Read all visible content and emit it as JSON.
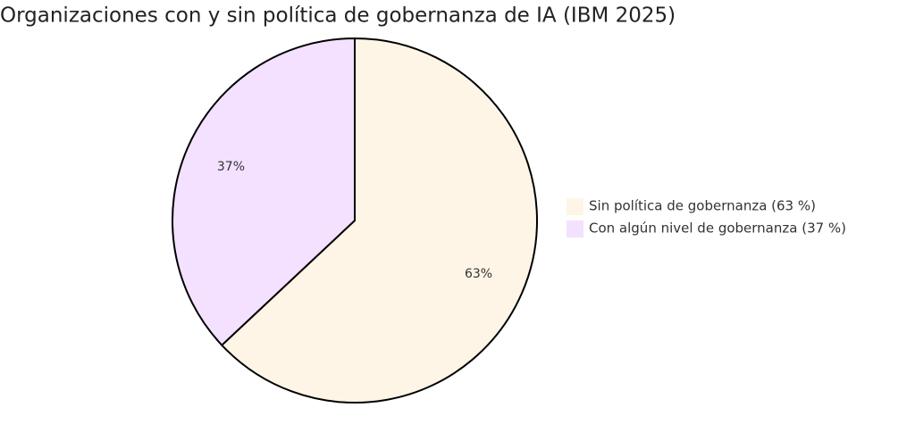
{
  "chart_data": {
    "type": "pie",
    "title": "Organizaciones con y sin política de gobernanza de IA (IBM 2025)",
    "categories": [
      "Sin política de gobernanza (63 %)",
      "Con algún nivel de gobernanza (37 %)"
    ],
    "values": [
      63,
      37
    ],
    "value_labels": [
      "63%",
      "37%"
    ],
    "colors": [
      "#fff5e6",
      "#f3e1ff"
    ],
    "legend": "right"
  }
}
